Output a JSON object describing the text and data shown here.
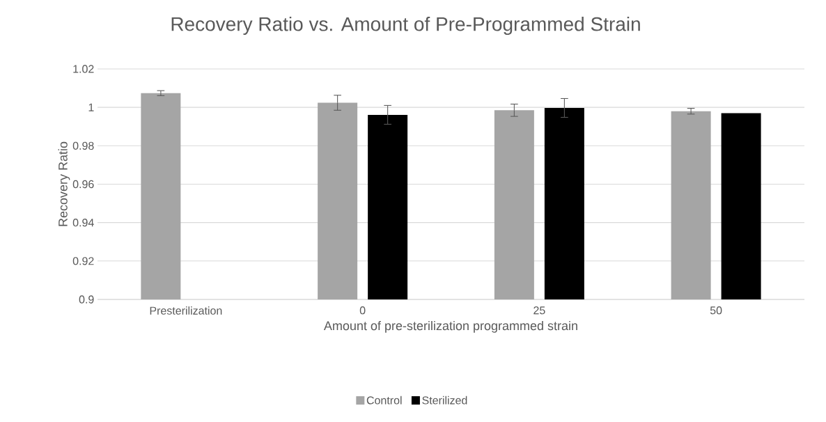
{
  "chart_data": {
    "type": "bar",
    "title": "Recovery Ratio vs. Amount of Pre-Programmed Strain",
    "xlabel": "Amount of pre-sterilization programmed strain",
    "ylabel": "Recovery Ratio",
    "categories": [
      "Presterilization",
      "0",
      "25",
      "50"
    ],
    "series": [
      {
        "name": "Control",
        "color": "#a5a5a5",
        "values": [
          1.0074,
          1.0024,
          0.9985,
          0.998
        ],
        "errors": [
          0.0013,
          0.0039,
          0.0032,
          0.0015
        ]
      },
      {
        "name": "Sterilized",
        "color": "#000000",
        "values": [
          null,
          0.9961,
          0.9997,
          0.997
        ],
        "errors": [
          null,
          0.0049,
          0.0049,
          null
        ]
      }
    ],
    "ylim": [
      0.9,
      1.02
    ],
    "yticks": [
      0.9,
      0.92,
      0.94,
      0.96,
      0.98,
      1,
      1.02
    ],
    "grid": "y",
    "legend": "bottom"
  }
}
